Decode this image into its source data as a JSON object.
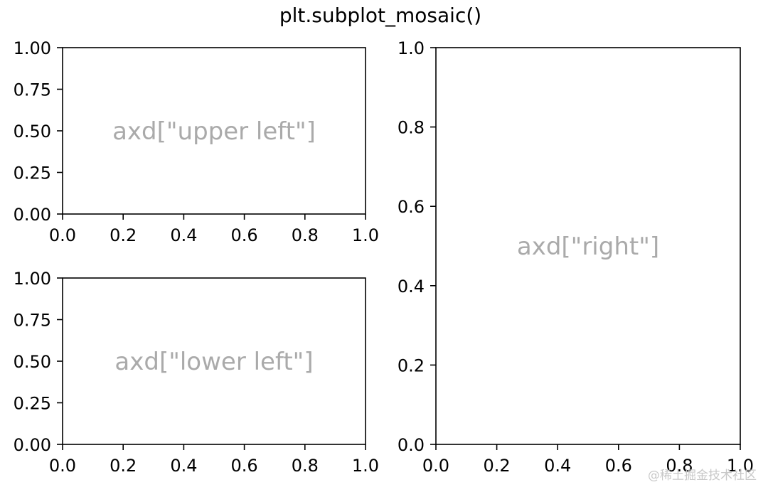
{
  "figure": {
    "title": "plt.subplot_mosaic()",
    "watermark": "@稀土掘金技术社区"
  },
  "colors": {
    "axes_edge": "#000000",
    "annotation_text": "#aaaaaa",
    "background": "#ffffff"
  },
  "chart_data": [
    {
      "type": "scatter",
      "panel": "upper left",
      "annotation": "axd[\"upper left\"]",
      "xlim": [
        0.0,
        1.0
      ],
      "ylim": [
        0.0,
        1.0
      ],
      "xticks": [
        0.0,
        0.2,
        0.4,
        0.6,
        0.8,
        1.0
      ],
      "xtick_labels": [
        "0.0",
        "0.2",
        "0.4",
        "0.6",
        "0.8",
        "1.0"
      ],
      "yticks": [
        0.0,
        0.25,
        0.5,
        0.75,
        1.0
      ],
      "ytick_labels": [
        "0.00",
        "0.25",
        "0.50",
        "0.75",
        "1.00"
      ],
      "series": [],
      "grid": false
    },
    {
      "type": "scatter",
      "panel": "lower left",
      "annotation": "axd[\"lower left\"]",
      "xlim": [
        0.0,
        1.0
      ],
      "ylim": [
        0.0,
        1.0
      ],
      "xticks": [
        0.0,
        0.2,
        0.4,
        0.6,
        0.8,
        1.0
      ],
      "xtick_labels": [
        "0.0",
        "0.2",
        "0.4",
        "0.6",
        "0.8",
        "1.0"
      ],
      "yticks": [
        0.0,
        0.25,
        0.5,
        0.75,
        1.0
      ],
      "ytick_labels": [
        "0.00",
        "0.25",
        "0.50",
        "0.75",
        "1.00"
      ],
      "series": [],
      "grid": false
    },
    {
      "type": "scatter",
      "panel": "right",
      "annotation": "axd[\"right\"]",
      "xlim": [
        0.0,
        1.0
      ],
      "ylim": [
        0.0,
        1.0
      ],
      "xticks": [
        0.0,
        0.2,
        0.4,
        0.6,
        0.8,
        1.0
      ],
      "xtick_labels": [
        "0.0",
        "0.2",
        "0.4",
        "0.6",
        "0.8",
        "1.0"
      ],
      "yticks": [
        0.0,
        0.2,
        0.4,
        0.6,
        0.8,
        1.0
      ],
      "ytick_labels": [
        "0.0",
        "0.2",
        "0.4",
        "0.6",
        "0.8",
        "1.0"
      ],
      "series": [],
      "grid": false
    }
  ]
}
